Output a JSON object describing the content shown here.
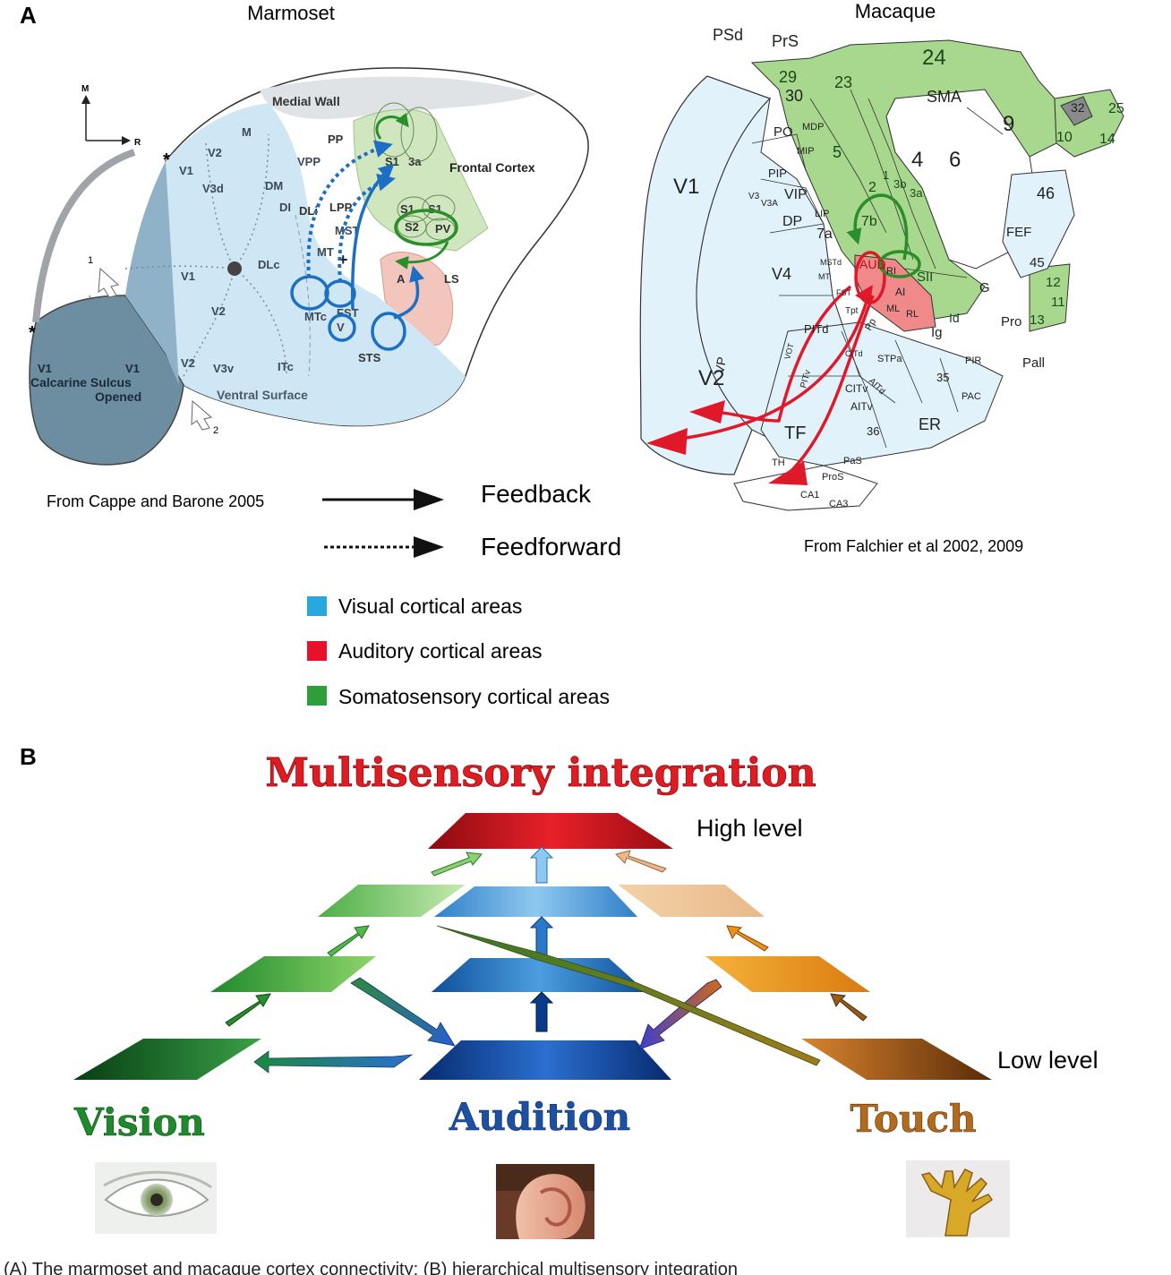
{
  "panel_a": {
    "label": "A",
    "marmoset": {
      "title": "Marmoset",
      "credit": "From Cappe and Barone 2005",
      "compass_m": "M",
      "compass_r": "R",
      "star": "*",
      "regions": {
        "medial_wall": "Medial Wall",
        "frontal_cortex": "Frontal Cortex",
        "calcarine": "Calcarine Sulcus",
        "opened": "Opened",
        "ventral_surface": "Ventral Surface"
      },
      "areas": [
        "V1",
        "V2",
        "V3d",
        "M",
        "DM",
        "VPP",
        "PP",
        "DI",
        "DLi",
        "LPP",
        "DLc",
        "V1",
        "V2",
        "V3v",
        "V2",
        "ITc",
        "MT",
        "MST",
        "MTc",
        "FST",
        "V",
        "STS",
        "S1",
        "3a",
        "S1",
        "S1",
        "S2",
        "PV",
        "A",
        "LS",
        "V1",
        "V1"
      ],
      "markers": [
        "1",
        "2",
        "+"
      ]
    },
    "macaque": {
      "title": "Macaque",
      "credit": "From Falchier et al 2002, 2009",
      "areas": [
        "PSd",
        "PrS",
        "29",
        "23",
        "24",
        "30",
        "SMA",
        "9",
        "25",
        "32",
        "10",
        "14",
        "PO",
        "MDP",
        "5",
        "4",
        "6",
        "MIP",
        "PIP",
        "V3",
        "V3A",
        "VIP",
        "LIP",
        "DP",
        "7a",
        "7b",
        "2",
        "1",
        "3b",
        "3a",
        "46",
        "FEF",
        "45",
        "12",
        "11",
        "13",
        "V1",
        "V4",
        "MSTd",
        "MT",
        "FST",
        "AUD",
        "RI",
        "SII",
        "AI",
        "RL",
        "ML",
        "Id",
        "G",
        "Ig",
        "Pro",
        "Pall",
        "PITd",
        "Tpt",
        "VOT",
        "PITv",
        "CITd",
        "CITv",
        "STPa",
        "AITd",
        "AITv",
        "Pp",
        "35",
        "PIR",
        "PAC",
        "V2",
        "VP",
        "TF",
        "36",
        "ER",
        "TH",
        "PaS",
        "ProS",
        "CA1",
        "CA3"
      ]
    },
    "legend": {
      "feedback": "Feedback",
      "feedforward": "Feedforward",
      "visual": "Visual cortical areas",
      "auditory": "Auditory cortical areas",
      "somatosensory": "Somatosensory cortical areas",
      "visual_color": "#29a8e0",
      "auditory_color": "#e8102a",
      "somatosensory_color": "#2e9e3a"
    }
  },
  "panel_b": {
    "label": "B",
    "title": "Multisensory integration",
    "high_level": "High level",
    "low_level": "Low level",
    "vision": "Vision",
    "audition": "Audition",
    "touch": "Touch",
    "title_color": "#e01b22",
    "vision_color": "#1f8a2c",
    "audition_color": "#1d4fa3",
    "touch_color": "#b26a1c"
  },
  "caption_fragment": "(A) The marmoset and macaque cortex connectivity; (B) hierarchical multisensory integration"
}
